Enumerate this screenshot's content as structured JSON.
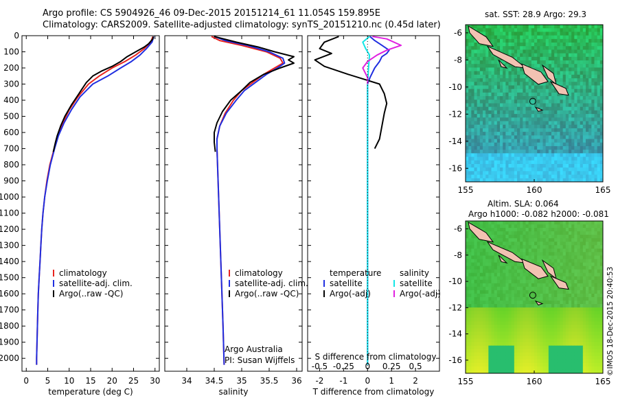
{
  "header": {
    "line1": "Argo profile: CS 5904926_46 09-Dec-2015 20151214_61 11.054S 159.895E",
    "line2": "Climatology: CARS2009. Satellite-adjusted climatology: synTS_20151210.nc (0.45d later)"
  },
  "credit": "©IMOS 18-Dec-2015 20:40:53",
  "colors": {
    "climatology": "#e8231e",
    "satellite": "#1f2ee0",
    "argo": "#000000",
    "satellite_s": "#11e6e6",
    "argo_s": "#e020e0"
  },
  "chart_data": [
    {
      "type": "line",
      "id": "temperature",
      "xlabel": "temperature (deg C)",
      "ylabel": "",
      "xlim": [
        -1,
        31
      ],
      "ylim": [
        2080,
        0
      ],
      "xticks": [
        0,
        5,
        10,
        15,
        20,
        25,
        30
      ],
      "yticks": [
        0,
        100,
        200,
        300,
        400,
        500,
        600,
        700,
        800,
        900,
        1000,
        1100,
        1200,
        1300,
        1400,
        1500,
        1600,
        1700,
        1800,
        1900,
        2000
      ],
      "legend": [
        "climatology",
        "satellite-adj. clim.",
        "Argo(..raw -QC)"
      ],
      "series": [
        {
          "name": "climatology",
          "points": [
            [
              29.5,
              5
            ],
            [
              29,
              40
            ],
            [
              27.5,
              80
            ],
            [
              25.5,
              120
            ],
            [
              23,
              160
            ],
            [
              20,
              200
            ],
            [
              17,
              250
            ],
            [
              14.5,
              300
            ],
            [
              12,
              380
            ],
            [
              10,
              460
            ],
            [
              8.5,
              540
            ],
            [
              7.3,
              620
            ],
            [
              6.5,
              700
            ],
            [
              5.5,
              800
            ],
            [
              4.8,
              900
            ],
            [
              4.3,
              1000
            ],
            [
              3.9,
              1100
            ],
            [
              3.6,
              1200
            ],
            [
              3.4,
              1300
            ],
            [
              3.2,
              1400
            ],
            [
              3.0,
              1500
            ],
            [
              2.8,
              1600
            ],
            [
              2.7,
              1700
            ],
            [
              2.6,
              1800
            ],
            [
              2.5,
              1900
            ],
            [
              2.4,
              2000
            ],
            [
              2.4,
              2040
            ]
          ]
        },
        {
          "name": "satellite-adj. clim.",
          "points": [
            [
              29.7,
              5
            ],
            [
              29.3,
              40
            ],
            [
              28,
              80
            ],
            [
              26.5,
              120
            ],
            [
              24.5,
              160
            ],
            [
              22,
              200
            ],
            [
              19,
              250
            ],
            [
              15.5,
              300
            ],
            [
              12.5,
              380
            ],
            [
              10.5,
              460
            ],
            [
              8.8,
              540
            ],
            [
              7.5,
              620
            ],
            [
              6.6,
              700
            ],
            [
              5.6,
              800
            ],
            [
              4.9,
              900
            ],
            [
              4.3,
              1000
            ],
            [
              3.9,
              1100
            ],
            [
              3.6,
              1200
            ],
            [
              3.4,
              1300
            ],
            [
              3.2,
              1400
            ],
            [
              3.0,
              1500
            ],
            [
              2.8,
              1600
            ],
            [
              2.7,
              1700
            ],
            [
              2.6,
              1800
            ],
            [
              2.5,
              1900
            ],
            [
              2.4,
              2000
            ],
            [
              2.4,
              2040
            ]
          ]
        },
        {
          "name": "Argo(..raw -QC)",
          "points": [
            [
              29.6,
              5
            ],
            [
              29.5,
              20
            ],
            [
              28.5,
              50
            ],
            [
              27.5,
              70
            ],
            [
              25.5,
              100
            ],
            [
              23.5,
              130
            ],
            [
              22,
              160
            ],
            [
              20,
              190
            ],
            [
              17.5,
              220
            ],
            [
              15.5,
              250
            ],
            [
              14,
              290
            ],
            [
              13,
              330
            ],
            [
              12,
              370
            ],
            [
              10.5,
              430
            ],
            [
              9,
              500
            ],
            [
              8,
              560
            ],
            [
              7.2,
              620
            ],
            [
              6.8,
              660
            ],
            [
              6.3,
              720
            ]
          ]
        }
      ]
    },
    {
      "type": "line",
      "id": "salinity",
      "xlabel": "salinity",
      "xlim": [
        33.6,
        36.1
      ],
      "ylim": [
        2080,
        0
      ],
      "xticks": [
        34,
        34.5,
        35,
        35.5,
        36
      ],
      "xticklabels": [
        "34",
        "34.5",
        "35",
        "35.5",
        "36"
      ],
      "legend": [
        "climatology",
        "satellite-adj. clim.",
        "Argo(..raw -QC)"
      ],
      "annotation1": "Argo Australia",
      "annotation2": "PI: Susan Wijffels",
      "series": [
        {
          "name": "climatology",
          "points": [
            [
              34.45,
              5
            ],
            [
              34.6,
              30
            ],
            [
              35.0,
              60
            ],
            [
              35.45,
              100
            ],
            [
              35.7,
              140
            ],
            [
              35.75,
              170
            ],
            [
              35.6,
              200
            ],
            [
              35.4,
              240
            ],
            [
              35.2,
              290
            ],
            [
              35.0,
              340
            ],
            [
              34.85,
              400
            ],
            [
              34.7,
              480
            ],
            [
              34.6,
              560
            ],
            [
              34.55,
              640
            ],
            [
              34.55,
              700
            ],
            [
              34.56,
              800
            ],
            [
              34.58,
              1000
            ],
            [
              34.6,
              1200
            ],
            [
              34.62,
              1400
            ],
            [
              34.64,
              1600
            ],
            [
              34.66,
              1800
            ],
            [
              34.68,
              2040
            ]
          ]
        },
        {
          "name": "satellite-adj. clim.",
          "points": [
            [
              34.5,
              5
            ],
            [
              34.7,
              30
            ],
            [
              35.1,
              60
            ],
            [
              35.5,
              100
            ],
            [
              35.75,
              140
            ],
            [
              35.78,
              170
            ],
            [
              35.65,
              200
            ],
            [
              35.45,
              240
            ],
            [
              35.25,
              290
            ],
            [
              35.05,
              340
            ],
            [
              34.9,
              400
            ],
            [
              34.72,
              480
            ],
            [
              34.6,
              560
            ],
            [
              34.55,
              640
            ],
            [
              34.55,
              700
            ],
            [
              34.56,
              800
            ],
            [
              34.58,
              1000
            ],
            [
              34.6,
              1200
            ],
            [
              34.62,
              1400
            ],
            [
              34.64,
              1600
            ],
            [
              34.66,
              1800
            ],
            [
              34.68,
              2040
            ]
          ]
        },
        {
          "name": "Argo(..raw -QC)",
          "points": [
            [
              34.5,
              5
            ],
            [
              34.9,
              40
            ],
            [
              35.3,
              70
            ],
            [
              35.6,
              100
            ],
            [
              35.95,
              130
            ],
            [
              35.85,
              150
            ],
            [
              35.95,
              170
            ],
            [
              35.7,
              200
            ],
            [
              35.4,
              240
            ],
            [
              35.15,
              290
            ],
            [
              35.0,
              340
            ],
            [
              34.8,
              400
            ],
            [
              34.65,
              470
            ],
            [
              34.55,
              540
            ],
            [
              34.5,
              600
            ],
            [
              34.5,
              660
            ],
            [
              34.52,
              720
            ]
          ]
        }
      ]
    },
    {
      "type": "line",
      "id": "difference",
      "xlabel": "T difference from climatology",
      "xlabel_top": "S difference from climatology",
      "xlim": [
        -2.5,
        3
      ],
      "ylim": [
        2080,
        0
      ],
      "xticks": [
        -2,
        -1,
        0,
        1,
        2
      ],
      "xticklabels": [
        "-2",
        "-1",
        "0",
        "1",
        "2"
      ],
      "sticks_labels": [
        "-0.5",
        "-0.25",
        "0",
        "0.25",
        "0.5"
      ],
      "legend_left_title": "temperature",
      "legend_right_title": "salinity",
      "legend": [
        "satellite",
        "Argo(-adj)"
      ],
      "series": [
        {
          "name": "T satellite",
          "points": [
            [
              0.1,
              5
            ],
            [
              0.3,
              30
            ],
            [
              0.6,
              60
            ],
            [
              0.9,
              90
            ],
            [
              0.8,
              110
            ],
            [
              0.6,
              130
            ],
            [
              0.5,
              160
            ],
            [
              0.3,
              200
            ],
            [
              0.1,
              260
            ],
            [
              0,
              300
            ],
            [
              0,
              2040
            ]
          ]
        },
        {
          "name": "T Argo(-adj)",
          "points": [
            [
              -1.2,
              5
            ],
            [
              -1.8,
              40
            ],
            [
              -2.0,
              80
            ],
            [
              -1.5,
              110
            ],
            [
              -2.2,
              150
            ],
            [
              -1.8,
              190
            ],
            [
              -0.8,
              240
            ],
            [
              0.5,
              300
            ],
            [
              0.7,
              360
            ],
            [
              0.8,
              420
            ],
            [
              0.7,
              480
            ],
            [
              0.6,
              560
            ],
            [
              0.5,
              640
            ],
            [
              0.3,
              700
            ]
          ]
        },
        {
          "name": "S satellite",
          "points": [
            [
              0.02,
              5
            ],
            [
              -0.05,
              40
            ],
            [
              -0.02,
              80
            ],
            [
              0.02,
              120
            ],
            [
              0.01,
              200
            ],
            [
              0,
              300
            ],
            [
              0,
              2040
            ]
          ]
        },
        {
          "name": "S Argo(-adj)",
          "points": [
            [
              0.05,
              5
            ],
            [
              0.2,
              20
            ],
            [
              0.35,
              60
            ],
            [
              0.2,
              90
            ],
            [
              0.1,
              120
            ],
            [
              0.0,
              160
            ],
            [
              -0.05,
              200
            ],
            [
              0.0,
              260
            ],
            [
              0.0,
              300
            ]
          ]
        }
      ]
    },
    {
      "type": "heatmap",
      "id": "sst-map",
      "title": "sat. SST: 28.9 Argo: 29.3",
      "xticks": [
        155,
        160,
        165
      ],
      "yticks": [
        -6,
        -8,
        -10,
        -12,
        -14,
        -16
      ],
      "xlim": [
        155,
        165
      ],
      "ylim": [
        -17,
        -5.4
      ],
      "marker": [
        159.895,
        -11.054
      ]
    },
    {
      "type": "heatmap",
      "id": "sla-map",
      "title1": "Altim. SLA: 0.064",
      "title2": "Argo h1000: -0.082 h2000: -0.081",
      "xticks": [
        155,
        160,
        165
      ],
      "yticks": [
        -6,
        -8,
        -10,
        -12,
        -14,
        -16
      ],
      "xlim": [
        155,
        165
      ],
      "ylim": [
        -17,
        -5.4
      ],
      "marker": [
        159.895,
        -11.054
      ]
    }
  ]
}
